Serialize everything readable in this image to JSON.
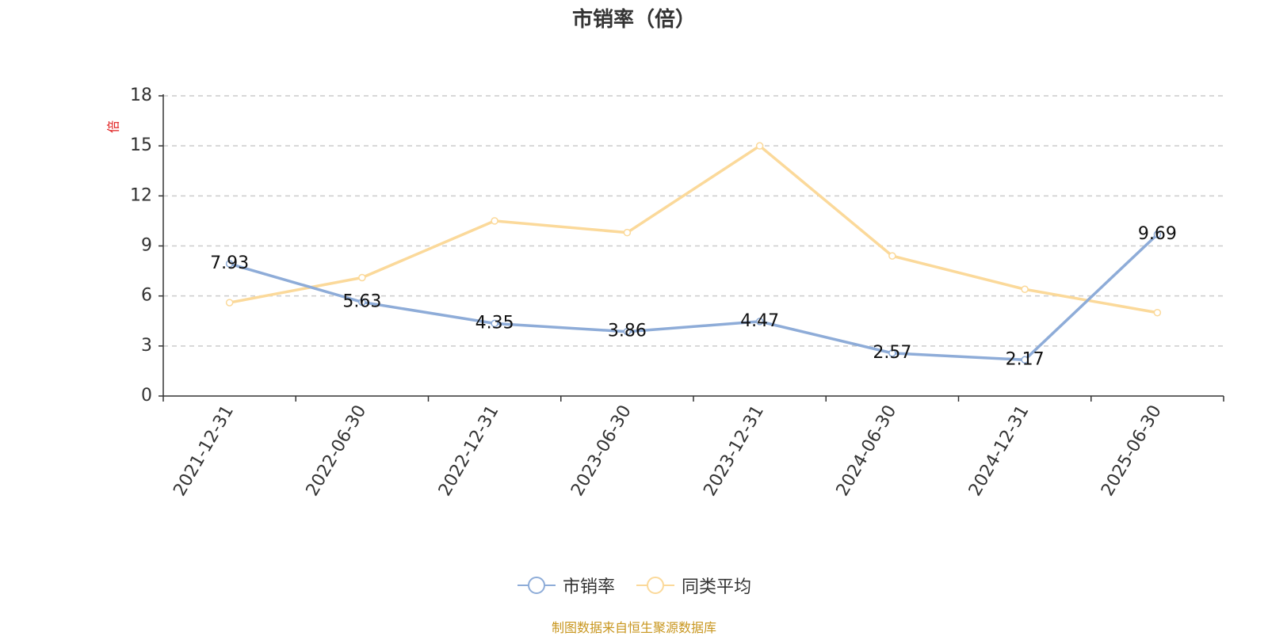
{
  "chart_data": {
    "type": "line",
    "title": "市销率（倍）",
    "y_unit_label": "倍",
    "categories": [
      "2021-12-31",
      "2022-06-30",
      "2022-12-31",
      "2023-06-30",
      "2023-12-31",
      "2024-06-30",
      "2024-12-31",
      "2025-06-30"
    ],
    "ylim": [
      0,
      18
    ],
    "yticks": [
      0,
      3,
      6,
      9,
      12,
      15,
      18
    ],
    "grid": true,
    "legend_position": "bottom",
    "series": [
      {
        "name": "市销率",
        "color": "#8eacd8",
        "values": [
          7.93,
          5.63,
          4.35,
          3.86,
          4.47,
          2.57,
          2.17,
          9.69
        ],
        "labels": [
          "7.93",
          "5.63",
          "4.35",
          "3.86",
          "4.47",
          "2.57",
          "2.17",
          "9.69"
        ],
        "show_labels": true
      },
      {
        "name": "同类平均",
        "color": "#fbd99a",
        "values": [
          5.6,
          7.1,
          10.5,
          9.8,
          15.0,
          8.4,
          6.4,
          5.0
        ],
        "show_labels": false
      }
    ]
  },
  "source_note": "制图数据来自恒生聚源数据库"
}
